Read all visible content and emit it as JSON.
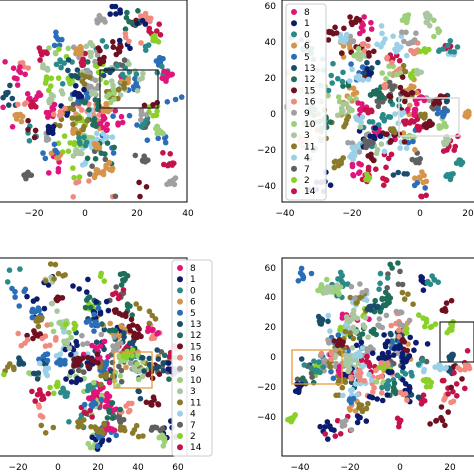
{
  "figure": {
    "palette": {
      "8": "#e0157a",
      "1": "#0b1c6e",
      "0": "#2a8a8a",
      "6": "#d4944a",
      "5": "#2a6db8",
      "13": "#1a4d6b",
      "12": "#1f6e5c",
      "15": "#6e1020",
      "16": "#f08a7e",
      "9": "#a0a0a0",
      "10": "#9ed07a",
      "3": "#a9c8a0",
      "11": "#8a7a2a",
      "4": "#9ad0e8",
      "7": "#606060",
      "2": "#8ad028",
      "14": "#c4124a"
    },
    "legend_order": [
      "8",
      "1",
      "0",
      "6",
      "5",
      "13",
      "12",
      "15",
      "16",
      "9",
      "10",
      "3",
      "11",
      "4",
      "7",
      "2",
      "14"
    ]
  },
  "chart_data": [
    {
      "type": "scatter",
      "panel": "top-left",
      "xticks": [
        "−20",
        "0",
        "20",
        "40"
      ],
      "yticks": [],
      "xlim": [
        -30,
        47
      ],
      "ylim": [
        -55,
        65
      ],
      "legend": null,
      "highlight_box_color": "#222222",
      "note": "t-SNE style embedding of 17 clusters; points scattered around origin"
    },
    {
      "type": "scatter",
      "panel": "top-right",
      "xticks": [
        "−40",
        "−20",
        "0",
        "20"
      ],
      "yticks": [
        "60",
        "40",
        "20",
        "0",
        "−20",
        "−40"
      ],
      "xlim": [
        -48,
        30
      ],
      "ylim": [
        -52,
        62
      ],
      "legend": "upper-left",
      "highlight_box_color": "#d8d8d8"
    },
    {
      "type": "scatter",
      "panel": "bottom-left",
      "xticks": [
        "−20",
        "0",
        "20",
        "40",
        "60"
      ],
      "yticks": [],
      "xlim": [
        -30,
        62
      ],
      "ylim": [
        -55,
        65
      ],
      "legend": "right",
      "highlight_box_color": "#e89a3a"
    },
    {
      "type": "scatter",
      "panel": "bottom-right",
      "xticks": [
        "−40",
        "−20",
        "0",
        "20"
      ],
      "yticks": [
        "60",
        "40",
        "20",
        "0",
        "−20",
        "−40"
      ],
      "xlim": [
        -48,
        30
      ],
      "ylim": [
        -52,
        62
      ],
      "legend": null,
      "highlight_box_color": "#e89a3a"
    }
  ]
}
